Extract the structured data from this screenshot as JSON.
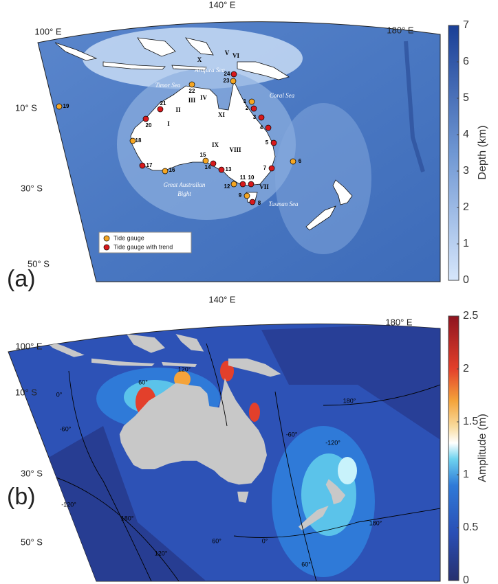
{
  "panels": [
    {
      "label": "(a)",
      "lon_labels": [
        "140° E",
        "100° E",
        "180° E"
      ],
      "lat_labels": [
        "10° S",
        "30° S",
        "50° S"
      ],
      "seas": [
        "Arafura Sea",
        "Timor Sea",
        "Coral Sea",
        "Great Australian",
        "Bight",
        "Tasman Sea"
      ],
      "legend": [
        {
          "name": "Tide gauge",
          "color": "#f5a623"
        },
        {
          "name": "Tide gauge with trend",
          "color": "#d7191c"
        }
      ],
      "gauges": [
        {
          "id": 1,
          "trend": false
        },
        {
          "id": 2,
          "trend": true
        },
        {
          "id": 3,
          "trend": true
        },
        {
          "id": 4,
          "trend": true
        },
        {
          "id": 5,
          "trend": true
        },
        {
          "id": 6,
          "trend": false
        },
        {
          "id": 7,
          "trend": true
        },
        {
          "id": 8,
          "trend": true
        },
        {
          "id": 9,
          "trend": false
        },
        {
          "id": 10,
          "trend": true
        },
        {
          "id": 11,
          "trend": true
        },
        {
          "id": 12,
          "trend": false
        },
        {
          "id": 13,
          "trend": true
        },
        {
          "id": 14,
          "trend": true
        },
        {
          "id": 15,
          "trend": false
        },
        {
          "id": 16,
          "trend": false
        },
        {
          "id": 17,
          "trend": true
        },
        {
          "id": 18,
          "trend": false
        },
        {
          "id": 19,
          "trend": false
        },
        {
          "id": 20,
          "trend": true
        },
        {
          "id": 21,
          "trend": true
        },
        {
          "id": 22,
          "trend": false
        },
        {
          "id": 23,
          "trend": false
        },
        {
          "id": 24,
          "trend": true
        }
      ],
      "sections": [
        "I",
        "II",
        "III",
        "IV",
        "V",
        "VI",
        "VII",
        "VIII",
        "IX",
        "X",
        "XI"
      ],
      "colorbar": {
        "label": "Depth (km)",
        "lim": [
          0,
          7
        ],
        "ticks": [
          0,
          1,
          2,
          3,
          4,
          5,
          6,
          7
        ]
      }
    },
    {
      "label": "(b)",
      "lon_labels": [
        "140° E",
        "100° E",
        "180° E"
      ],
      "lat_labels": [
        "10° S",
        "30° S",
        "50° S"
      ],
      "contour_labels": [
        "60°",
        "120°",
        "0°",
        "-60°",
        "-120°",
        "180°",
        "120°",
        "60°",
        "0°",
        "60°",
        "-60°",
        "-120°",
        "180°",
        "180°"
      ],
      "colorbar": {
        "label": "Amplitude (m)",
        "lim": [
          0,
          2.5
        ],
        "ticks": [
          0,
          0.5,
          1,
          1.5,
          2,
          2.5
        ]
      }
    }
  ]
}
